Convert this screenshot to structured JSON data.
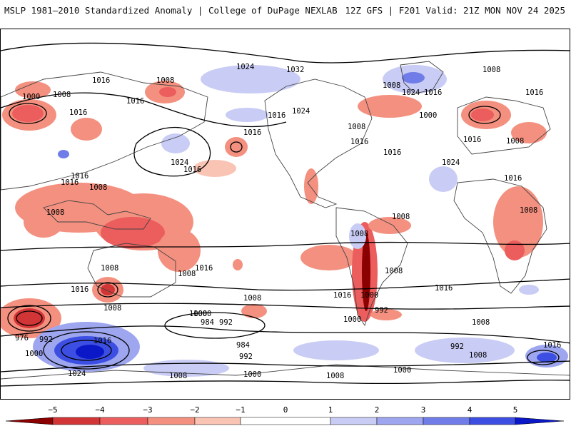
{
  "header": {
    "title_left": "MSLP 1981–2010 Standardized Anomaly | College of DuPage NEXLAB",
    "title_right": "12Z GFS | F201 Valid: 21Z MON NOV 24 2025"
  },
  "colors": {
    "neg5": "#8b0000",
    "neg4": "#d23535",
    "neg3": "#ec5d5d",
    "neg2": "#f4907f",
    "neg1": "#f9c4b4",
    "zero": "#ffffff",
    "pos1": "#c9ccf5",
    "pos2": "#9ea6ef",
    "pos3": "#707de8",
    "pos4": "#3d4fe2",
    "pos5": "#0b18c8",
    "land_outline": "#444444",
    "isobar": "#000000"
  },
  "colorbar": {
    "ticks": [
      "−5",
      "−4",
      "−3",
      "−2",
      "−1",
      "0",
      "1",
      "2",
      "3",
      "4",
      "5"
    ]
  },
  "isobar_labels": [
    "1024",
    "1032",
    "1008",
    "1024",
    "1016",
    "1008",
    "1008",
    "1000",
    "1016",
    "1016",
    "1008",
    "1016",
    "1016",
    "1016",
    "1024",
    "1008",
    "1000",
    "1016",
    "1016",
    "1016",
    "1024",
    "1008",
    "1016",
    "1008",
    "1008",
    "1008",
    "1016",
    "1008",
    "1024",
    "1016",
    "1008",
    "1016",
    "1008",
    "1008",
    "1008",
    "1016",
    "1016",
    "1000",
    "1008",
    "1016",
    "1016",
    "1000",
    "1008",
    "984",
    "992",
    "992",
    "1000",
    "976",
    "992",
    "1016",
    "984",
    "992",
    "1000",
    "992",
    "1008",
    "1016",
    "1000",
    "1024",
    "1008",
    "1000",
    "1008",
    "1000",
    "1016",
    "1008"
  ]
}
